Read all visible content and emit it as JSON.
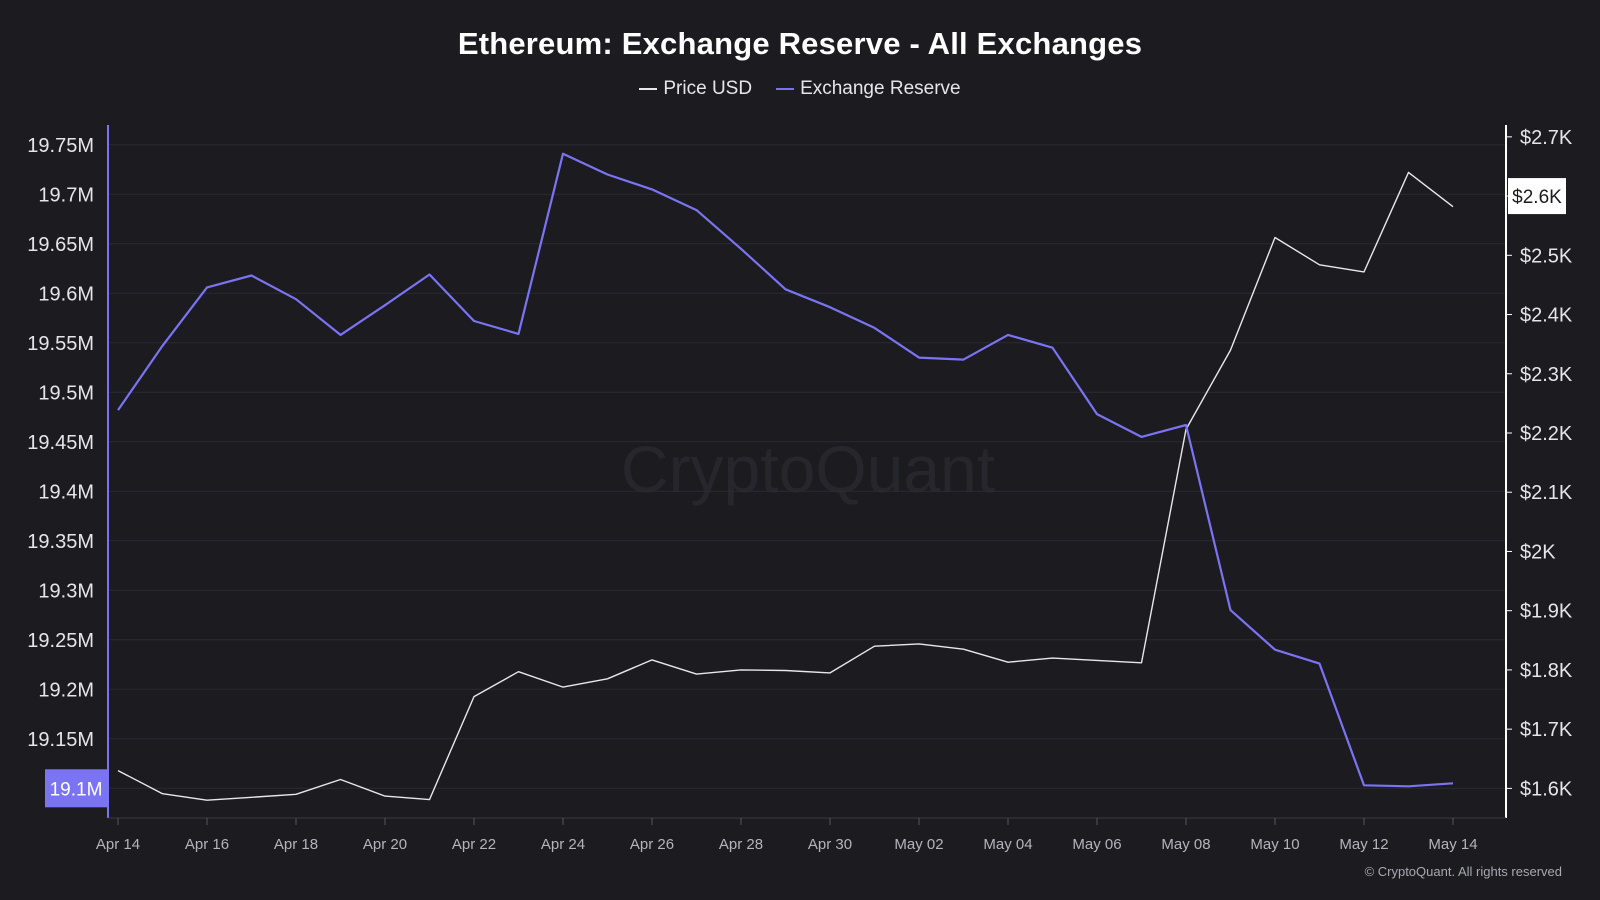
{
  "colors": {
    "background": "#1b1b20",
    "price": "#e8e8ec",
    "reserve": "#7b74f2",
    "grid": "#2b2b32",
    "text": "#e6e6ea",
    "tick": "#b4b4bc",
    "watermark": "#26262c"
  },
  "watermark": "CryptoQuant",
  "copyright": "© CryptoQuant. All rights reserved",
  "chart_data": {
    "type": "line",
    "title": "Ethereum: Exchange Reserve - All Exchanges",
    "legend_position": "top-center",
    "grid": true,
    "x": [
      "Apr 14",
      "Apr 15",
      "Apr 16",
      "Apr 17",
      "Apr 18",
      "Apr 19",
      "Apr 20",
      "Apr 21",
      "Apr 22",
      "Apr 23",
      "Apr 24",
      "Apr 25",
      "Apr 26",
      "Apr 27",
      "Apr 28",
      "Apr 29",
      "Apr 30",
      "May 01",
      "May 02",
      "May 03",
      "May 04",
      "May 05",
      "May 06",
      "May 07",
      "May 08",
      "May 09",
      "May 10",
      "May 11",
      "May 12",
      "May 13",
      "May 14"
    ],
    "x_tick_labels": [
      "Apr 14",
      "Apr 16",
      "Apr 18",
      "Apr 20",
      "Apr 22",
      "Apr 24",
      "Apr 26",
      "Apr 28",
      "Apr 30",
      "May 02",
      "May 04",
      "May 06",
      "May 08",
      "May 10",
      "May 12",
      "May 14"
    ],
    "y_left": {
      "ticks": [
        "19.75M",
        "19.7M",
        "19.65M",
        "19.6M",
        "19.55M",
        "19.5M",
        "19.45M",
        "19.4M",
        "19.35M",
        "19.3M",
        "19.25M",
        "19.2M",
        "19.15M",
        "19.1M"
      ],
      "range": [
        19.07,
        19.77
      ],
      "highlight_label": "19.1M"
    },
    "y_right": {
      "ticks": [
        "$2.7K",
        "$2.6K",
        "$2.5K",
        "$2.4K",
        "$2.3K",
        "$2.2K",
        "$2.1K",
        "$2K",
        "$1.9K",
        "$1.8K",
        "$1.7K",
        "$1.6K"
      ],
      "range": [
        1550,
        2720
      ],
      "highlight_label": "$2.6K"
    },
    "series": [
      {
        "name": "Price USD",
        "axis": "right",
        "values": [
          1630,
          1591,
          1580,
          1585,
          1590,
          1615,
          1587,
          1581,
          1755,
          1797,
          1771,
          1785,
          1817,
          1793,
          1800,
          1799,
          1795,
          1840,
          1844,
          1835,
          1813,
          1820,
          1816,
          1812,
          2206,
          2340,
          2530,
          2484,
          2472,
          2640,
          2582
        ]
      },
      {
        "name": "Exchange Reserve",
        "axis": "left",
        "values": [
          19.482,
          19.547,
          19.606,
          19.618,
          19.594,
          19.558,
          19.588,
          19.619,
          19.572,
          19.559,
          19.741,
          19.72,
          19.705,
          19.684,
          19.645,
          19.604,
          19.586,
          19.565,
          19.535,
          19.533,
          19.558,
          19.545,
          19.478,
          19.455,
          19.467,
          19.28,
          19.24,
          19.226,
          19.103,
          19.102,
          19.105
        ]
      }
    ]
  }
}
